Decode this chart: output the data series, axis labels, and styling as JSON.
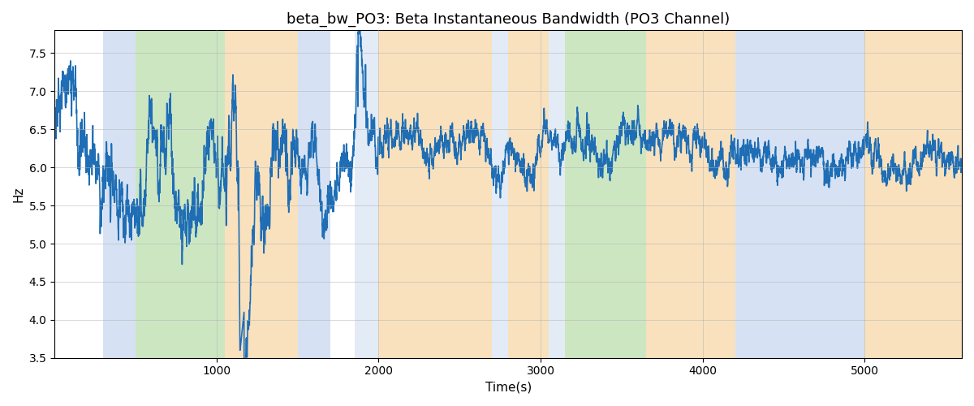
{
  "title": "beta_bw_PO3: Beta Instantaneous Bandwidth (PO3 Channel)",
  "xlabel": "Time(s)",
  "ylabel": "Hz",
  "ylim": [
    3.5,
    7.8
  ],
  "xlim": [
    0,
    5600
  ],
  "line_color": "#1f6eb5",
  "line_width": 1.2,
  "background_color": "#ffffff",
  "grid_color": "#b0b0b0",
  "title_fontsize": 13,
  "label_fontsize": 11,
  "bands": [
    {
      "start": 300,
      "end": 500,
      "color": "#aec6e8",
      "alpha": 0.5
    },
    {
      "start": 500,
      "end": 1050,
      "color": "#90c878",
      "alpha": 0.45
    },
    {
      "start": 1050,
      "end": 1500,
      "color": "#f5c98a",
      "alpha": 0.55
    },
    {
      "start": 1500,
      "end": 1700,
      "color": "#aec6e8",
      "alpha": 0.5
    },
    {
      "start": 1850,
      "end": 2000,
      "color": "#aec6e8",
      "alpha": 0.35
    },
    {
      "start": 2000,
      "end": 2700,
      "color": "#f5c98a",
      "alpha": 0.55
    },
    {
      "start": 2700,
      "end": 2800,
      "color": "#aec6e8",
      "alpha": 0.35
    },
    {
      "start": 2800,
      "end": 3050,
      "color": "#f5c98a",
      "alpha": 0.55
    },
    {
      "start": 3050,
      "end": 3150,
      "color": "#aec6e8",
      "alpha": 0.35
    },
    {
      "start": 3150,
      "end": 3650,
      "color": "#90c878",
      "alpha": 0.45
    },
    {
      "start": 3650,
      "end": 4200,
      "color": "#f5c98a",
      "alpha": 0.55
    },
    {
      "start": 4200,
      "end": 5000,
      "color": "#aec6e8",
      "alpha": 0.5
    },
    {
      "start": 5000,
      "end": 5600,
      "color": "#f5c98a",
      "alpha": 0.55
    }
  ],
  "xticks": [
    1000,
    2000,
    3000,
    4000,
    5000
  ],
  "yticks": [
    3.5,
    4.0,
    4.5,
    5.0,
    5.5,
    6.0,
    6.5,
    7.0,
    7.5
  ]
}
